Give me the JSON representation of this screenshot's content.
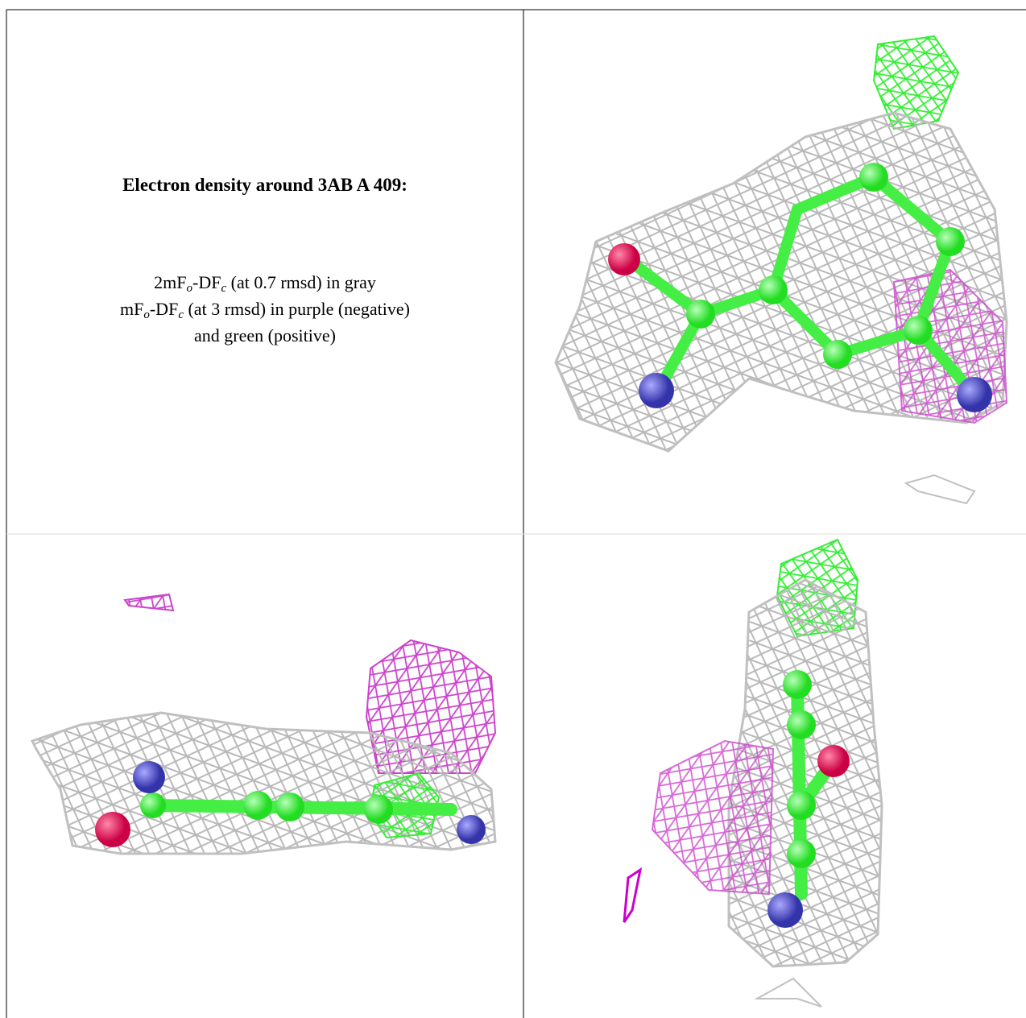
{
  "title": "Electron density around 3AB A 409:",
  "legend": [
    [
      "2mF",
      "o",
      "-DF",
      "c",
      " (at 0.7 rmsd) in gray"
    ],
    [
      "mF",
      "o",
      "-DF",
      "c",
      " (at 3 rmsd) in purple (negative)"
    ],
    [
      "and green (positive)"
    ]
  ]
}
